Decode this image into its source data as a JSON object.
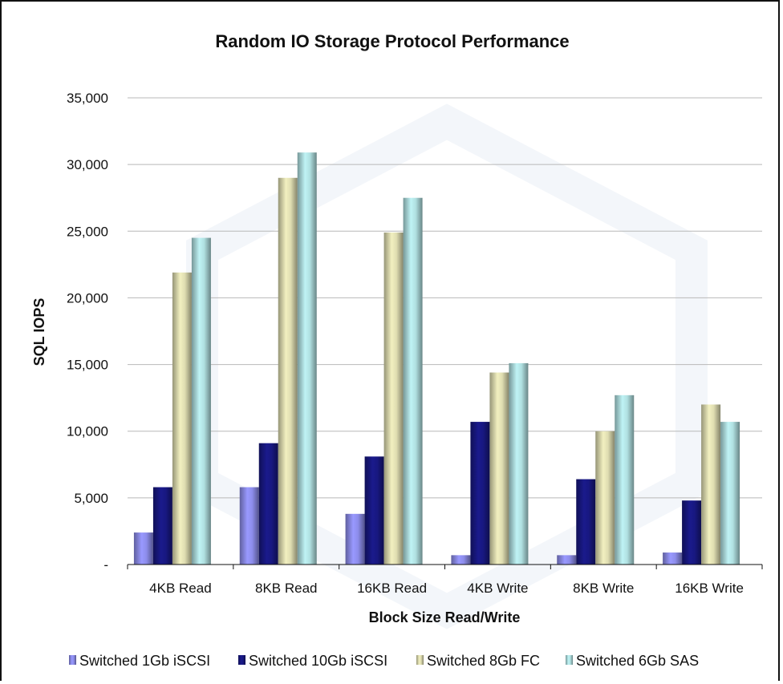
{
  "chart_data": {
    "type": "bar",
    "title": "Random IO Storage Protocol Performance",
    "xlabel": "Block Size Read/Write",
    "ylabel": "SQL IOPS",
    "categories": [
      "4KB Read",
      "8KB Read",
      "16KB Read",
      "4KB Write",
      "8KB Write",
      "16KB Write"
    ],
    "ylim": [
      0,
      35000
    ],
    "y_ticks": [
      0,
      5000,
      10000,
      15000,
      20000,
      25000,
      30000,
      35000
    ],
    "y_tick_labels": [
      "-",
      "5,000",
      "10,000",
      "15,000",
      "20,000",
      "25,000",
      "30,000",
      "35,000"
    ],
    "grid": true,
    "legend_position": "bottom",
    "series": [
      {
        "name": "Switched 1Gb iSCSI",
        "color": "#9999ff",
        "values": [
          2400,
          5800,
          3800,
          700,
          700,
          900
        ]
      },
      {
        "name": "Switched 10Gb iSCSI",
        "color": "#1a1a8c",
        "values": [
          5800,
          9100,
          8100,
          10700,
          6400,
          4800
        ]
      },
      {
        "name": "Switched 8Gb FC",
        "color": "#f2f0c0",
        "values": [
          21900,
          29000,
          24900,
          14400,
          10000,
          12000
        ]
      },
      {
        "name": "Switched 6Gb SAS",
        "color": "#bff3f5",
        "values": [
          24500,
          30900,
          27500,
          15100,
          12700,
          10700
        ]
      }
    ]
  }
}
